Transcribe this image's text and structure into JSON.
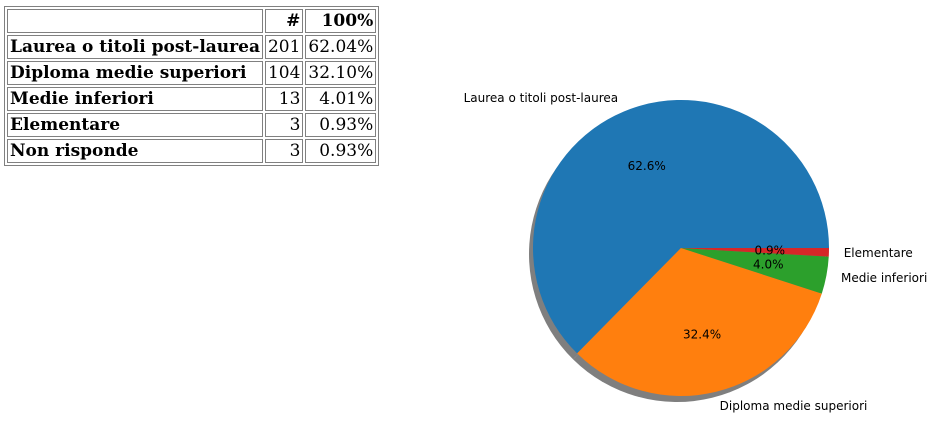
{
  "table": {
    "headers": [
      "",
      "#",
      "100%"
    ],
    "rows": [
      {
        "label": "Laurea o titoli post-laurea",
        "count": "201",
        "pct": "62.04%"
      },
      {
        "label": "Diploma medie superiori",
        "count": "104",
        "pct": "32.10%"
      },
      {
        "label": "Medie inferiori",
        "count": "13",
        "pct": "4.01%"
      },
      {
        "label": "Elementare",
        "count": "3",
        "pct": "0.93%"
      },
      {
        "label": "Non risponde",
        "count": "3",
        "pct": "0.93%"
      }
    ]
  },
  "chart_data": {
    "type": "pie",
    "title": "",
    "slices": [
      {
        "label": "Laurea o titoli post-laurea",
        "value": 201,
        "pct_label": "62.6%",
        "color": "#1f77b4"
      },
      {
        "label": "Diploma medie superiori",
        "value": 104,
        "pct_label": "32.4%",
        "color": "#ff7f0e"
      },
      {
        "label": "Medie inferiori",
        "value": 13,
        "pct_label": "4.0%",
        "color": "#2ca02c"
      },
      {
        "label": "Elementare",
        "value": 3,
        "pct_label": "0.9%",
        "color": "#d62728"
      }
    ],
    "start_angle_deg": 0,
    "direction": "counterclockwise",
    "shadow": true
  }
}
